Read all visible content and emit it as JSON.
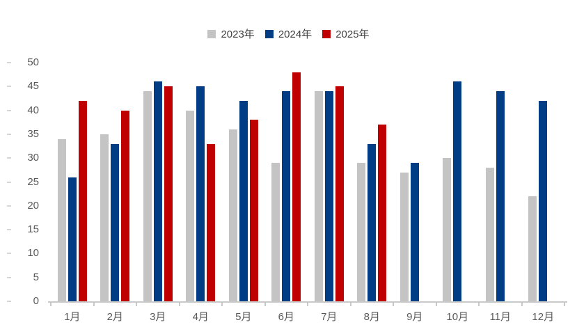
{
  "chart_data": {
    "type": "bar",
    "title": "",
    "xlabel": "",
    "ylabel": "",
    "categories": [
      "1月",
      "2月",
      "3月",
      "4月",
      "5月",
      "6月",
      "7月",
      "8月",
      "9月",
      "10月",
      "11月",
      "12月"
    ],
    "series": [
      {
        "name": "2023年",
        "color": "#c4c4c4",
        "values": [
          34,
          35,
          44,
          40,
          36,
          29,
          44,
          29,
          27,
          30,
          28,
          22
        ]
      },
      {
        "name": "2024年",
        "color": "#003d85",
        "values": [
          26,
          33,
          46,
          45,
          42,
          44,
          44,
          33,
          29,
          46,
          44,
          42
        ]
      },
      {
        "name": "2025年",
        "color": "#c00000",
        "values": [
          42,
          40,
          45,
          33,
          38,
          48,
          45,
          37,
          null,
          null,
          null,
          null
        ]
      }
    ],
    "ylim": [
      0,
      50
    ],
    "ytick_step": 5,
    "yticks": [
      0,
      5,
      10,
      15,
      20,
      25,
      30,
      35,
      40,
      45,
      50
    ],
    "legend_position": "top-center",
    "grid": false,
    "axis_color": "#c9c9c9",
    "tick_label_color": "#595959",
    "legend_text_color": "#404040",
    "background": "#ffffff"
  }
}
